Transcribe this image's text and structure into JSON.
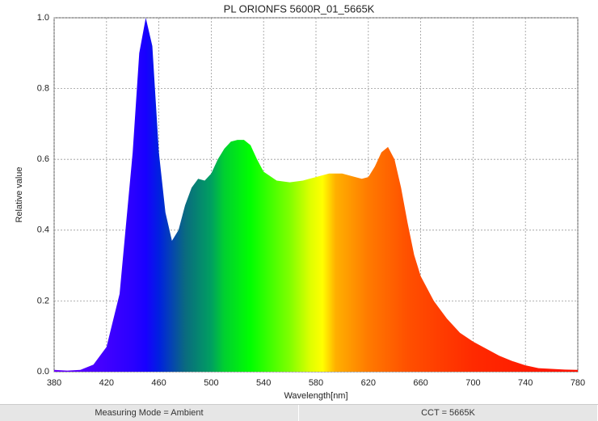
{
  "chart_data": {
    "type": "area",
    "title": "PL ORIONFS 5600R_01_5665K",
    "x_label": "Wavelength[nm]",
    "y_label": "Relative value",
    "x": [
      380,
      390,
      400,
      410,
      420,
      430,
      440,
      445,
      450,
      455,
      460,
      465,
      470,
      475,
      480,
      485,
      490,
      495,
      500,
      505,
      510,
      515,
      520,
      525,
      530,
      535,
      540,
      550,
      560,
      570,
      580,
      590,
      600,
      610,
      615,
      620,
      625,
      630,
      635,
      640,
      645,
      650,
      655,
      660,
      670,
      680,
      690,
      700,
      710,
      720,
      730,
      740,
      750,
      760,
      770,
      780
    ],
    "values": [
      0.005,
      0.003,
      0.005,
      0.02,
      0.07,
      0.22,
      0.62,
      0.9,
      1.0,
      0.92,
      0.62,
      0.45,
      0.37,
      0.4,
      0.47,
      0.52,
      0.545,
      0.54,
      0.56,
      0.6,
      0.63,
      0.65,
      0.655,
      0.655,
      0.64,
      0.6,
      0.565,
      0.54,
      0.535,
      0.54,
      0.55,
      0.56,
      0.56,
      0.55,
      0.545,
      0.55,
      0.58,
      0.62,
      0.635,
      0.6,
      0.52,
      0.42,
      0.33,
      0.27,
      0.2,
      0.15,
      0.11,
      0.085,
      0.065,
      0.045,
      0.03,
      0.018,
      0.01,
      0.008,
      0.006,
      0.005
    ],
    "xlim": [
      380,
      780
    ],
    "xticks": [
      380,
      420,
      460,
      500,
      540,
      580,
      620,
      660,
      700,
      740,
      780
    ],
    "ylim": [
      0,
      1
    ],
    "yticks": [
      {
        "value": 0,
        "label": "0.0"
      },
      0.2,
      0.4,
      0.6,
      0.8,
      {
        "value": 1,
        "label": "1.0"
      }
    ],
    "grid": true
  },
  "footer": [
    "Measuring Mode = Ambient",
    "CCT = 5665K"
  ]
}
